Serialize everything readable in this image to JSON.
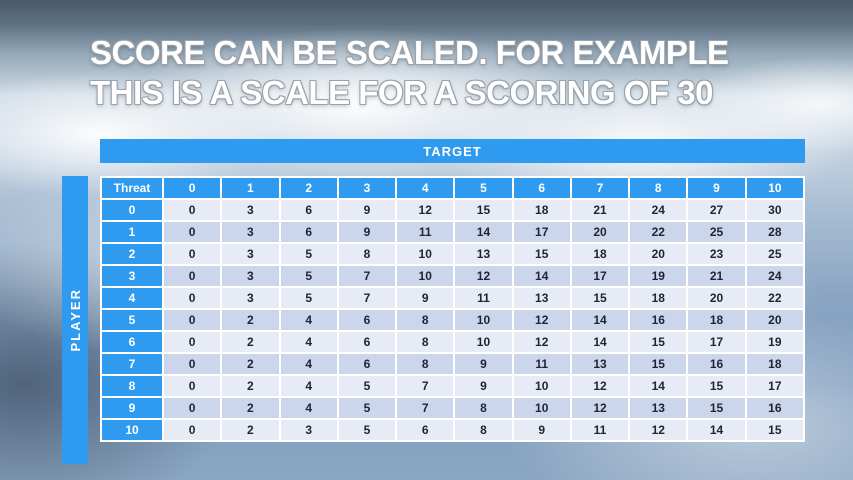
{
  "slide": {
    "title_line1": "SCORE CAN BE SCALED. FOR EXAMPLE",
    "title_line2": "THIS IS A SCALE FOR A SCORING OF 30"
  },
  "table": {
    "target_label": "TARGET",
    "player_label": "PLAYER",
    "corner_label": "Threat",
    "col_headers": [
      "0",
      "1",
      "2",
      "3",
      "4",
      "5",
      "6",
      "7",
      "8",
      "9",
      "10"
    ],
    "rows": [
      {
        "label": "0",
        "values": [
          0,
          3,
          6,
          9,
          12,
          15,
          18,
          21,
          24,
          27,
          30
        ]
      },
      {
        "label": "1",
        "values": [
          0,
          3,
          6,
          9,
          11,
          14,
          17,
          20,
          22,
          25,
          28
        ]
      },
      {
        "label": "2",
        "values": [
          0,
          3,
          5,
          8,
          10,
          13,
          15,
          18,
          20,
          23,
          25
        ]
      },
      {
        "label": "3",
        "values": [
          0,
          3,
          5,
          7,
          10,
          12,
          14,
          17,
          19,
          21,
          24
        ]
      },
      {
        "label": "4",
        "values": [
          0,
          3,
          5,
          7,
          9,
          11,
          13,
          15,
          18,
          20,
          22
        ]
      },
      {
        "label": "5",
        "values": [
          0,
          2,
          4,
          6,
          8,
          10,
          12,
          14,
          16,
          18,
          20
        ]
      },
      {
        "label": "6",
        "values": [
          0,
          2,
          4,
          6,
          8,
          10,
          12,
          14,
          15,
          17,
          19
        ]
      },
      {
        "label": "7",
        "values": [
          0,
          2,
          4,
          6,
          8,
          9,
          11,
          13,
          15,
          16,
          18
        ]
      },
      {
        "label": "8",
        "values": [
          0,
          2,
          4,
          5,
          7,
          9,
          10,
          12,
          14,
          15,
          17
        ]
      },
      {
        "label": "9",
        "values": [
          0,
          2,
          4,
          5,
          7,
          8,
          10,
          12,
          13,
          15,
          16
        ]
      },
      {
        "label": "10",
        "values": [
          0,
          2,
          3,
          5,
          6,
          8,
          9,
          11,
          12,
          14,
          15
        ]
      }
    ]
  },
  "colors": {
    "accent_blue": "#2E9BF0",
    "band_light": "#E7EBF6",
    "band_dark": "#CBD6EC",
    "cell_text": "#1F2430",
    "header_text": "#FFFFFF"
  }
}
